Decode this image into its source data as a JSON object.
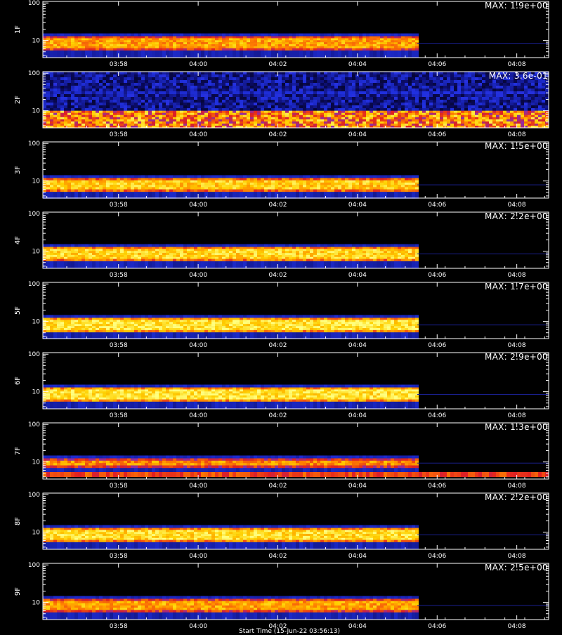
{
  "chart_data": {
    "type": "heatmap",
    "x_tick_labels": [
      "03:58",
      "04:00",
      "04:02",
      "04:04",
      "04:06",
      "04:08"
    ],
    "x_ticks_minutes": [
      238,
      240,
      242,
      244,
      246,
      248
    ],
    "x_range_minutes": [
      236.1,
      248.8
    ],
    "y_scale": "log",
    "y_tick_labels": [
      "100",
      "10"
    ],
    "y_range": [
      3.5,
      110
    ],
    "signal_end_minutes": 245.5,
    "colormap": [
      "#000000",
      "#0a0a60",
      "#2030e0",
      "#8030c0",
      "#e02020",
      "#ff8000",
      "#ffd000",
      "#ffff80"
    ],
    "panels": [
      {
        "label": "1F",
        "max": "MAX: 1.9e+00",
        "band": [
          5.5,
          13
        ],
        "level": 0.78,
        "pattern": "normal"
      },
      {
        "label": "2F",
        "max": "MAX: 3.6e-01",
        "band": [
          3.5,
          10
        ],
        "level": 0.72,
        "pattern": "noisy"
      },
      {
        "label": "3F",
        "max": "MAX: 1.5e+00",
        "band": [
          5.2,
          12
        ],
        "level": 0.86,
        "pattern": "normal"
      },
      {
        "label": "4F",
        "max": "MAX: 2.2e+00",
        "band": [
          5.5,
          13
        ],
        "level": 0.88,
        "pattern": "normal"
      },
      {
        "label": "5F",
        "max": "MAX: 1.7e+00",
        "band": [
          5.2,
          12.5
        ],
        "level": 0.92,
        "pattern": "normal"
      },
      {
        "label": "6F",
        "max": "MAX: 2.9e+00",
        "band": [
          5.5,
          13
        ],
        "level": 0.92,
        "pattern": "normal"
      },
      {
        "label": "7F",
        "max": "MAX: 1.3e+00",
        "band": [
          7,
          12.5
        ],
        "level": 0.74,
        "pattern": "split"
      },
      {
        "label": "8F",
        "max": "MAX: 2.2e+00",
        "band": [
          5.5,
          13
        ],
        "level": 0.9,
        "pattern": "normal"
      },
      {
        "label": "9F",
        "max": "MAX: 2.5e+00",
        "band": [
          5.5,
          12.5
        ],
        "level": 0.78,
        "pattern": "normal"
      }
    ]
  },
  "xlabel": "Start Time (15-Jun-22 03:56:13)"
}
